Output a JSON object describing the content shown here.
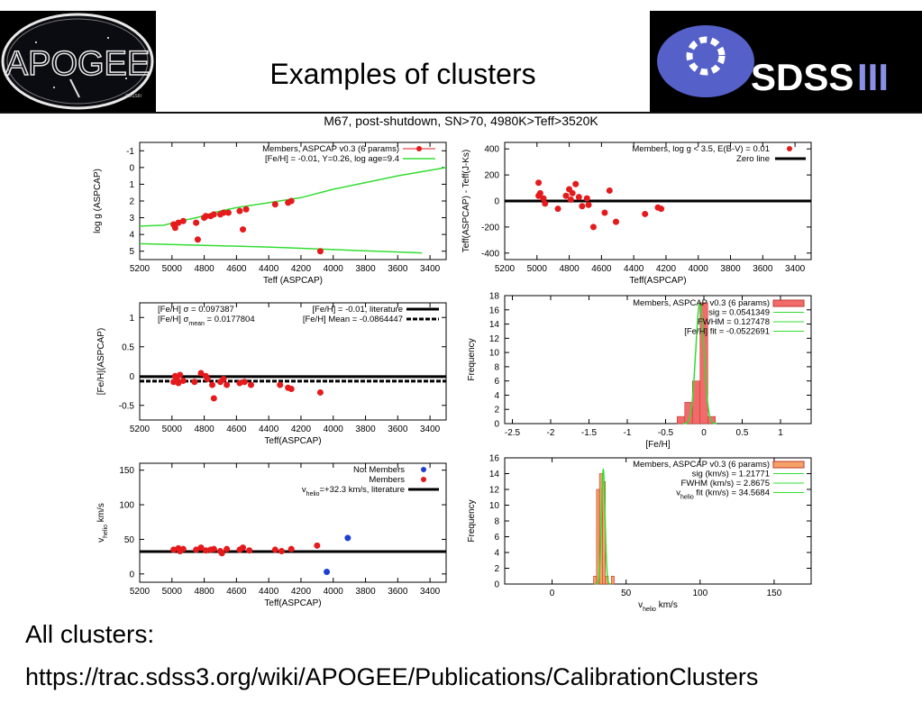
{
  "slide": {
    "title": "Examples of clusters",
    "logo_left_text": "APOGEE",
    "logo_left_small": "SDSSIII",
    "logo_right_text": "SDSS",
    "logo_right_roman": "III",
    "footer_label": "All clusters:",
    "footer_url": "https://trac.sdss3.org/wiki/APOGEE/Publications/CalibrationClusters"
  },
  "figure_title": "M67, post-shutdown, SN>70, 4980K>Teff>3520K",
  "colors": {
    "member_red": "#e41a1c",
    "nonmember_blue": "#1f3fd1",
    "green": "#33dd33",
    "bar_red": "#f26b6b",
    "bar_orange": "#f4a268"
  },
  "chart_data": [
    {
      "id": "logg",
      "type": "scatter",
      "xlabel": "Teff (ASPCAP)",
      "ylabel": "log g (ASPCAP)",
      "xlim": [
        5200,
        3300
      ],
      "ylim": [
        5.5,
        -1.5
      ],
      "xticks": [
        5200,
        5000,
        4800,
        4600,
        4400,
        4200,
        4000,
        3800,
        3600,
        3400
      ],
      "yticks": [
        -1,
        0,
        1,
        2,
        3,
        4,
        5
      ],
      "legend": [
        "Members, ASPCAP v0.3 (6 params)",
        "[Fe/H] = -0.01, Y=0.26, log age=9.4"
      ],
      "points": [
        [
          4990,
          3.4
        ],
        [
          4980,
          3.6
        ],
        [
          4960,
          3.3
        ],
        [
          4930,
          3.2
        ],
        [
          4850,
          3.3
        ],
        [
          4800,
          3.0
        ],
        [
          4790,
          2.9
        ],
        [
          4760,
          2.9
        ],
        [
          4740,
          2.8
        ],
        [
          4700,
          2.8
        ],
        [
          4680,
          2.7
        ],
        [
          4650,
          2.7
        ],
        [
          4580,
          2.6
        ],
        [
          4540,
          2.5
        ],
        [
          4360,
          2.2
        ],
        [
          4280,
          2.1
        ],
        [
          4260,
          2.0
        ],
        [
          4840,
          4.3
        ],
        [
          4560,
          3.7
        ],
        [
          4080,
          5.0
        ]
      ],
      "isochrone_upper": [
        [
          5200,
          3.5
        ],
        [
          5050,
          3.45
        ],
        [
          4950,
          3.2
        ],
        [
          4850,
          3.0
        ],
        [
          4700,
          2.6
        ],
        [
          4600,
          2.4
        ],
        [
          4400,
          2.1
        ],
        [
          4200,
          1.8
        ],
        [
          4000,
          1.3
        ],
        [
          3800,
          0.9
        ],
        [
          3600,
          0.5
        ],
        [
          3300,
          0.0
        ]
      ],
      "isochrone_lower": [
        [
          5200,
          4.55
        ],
        [
          4800,
          4.65
        ],
        [
          4400,
          4.75
        ],
        [
          4000,
          4.9
        ],
        [
          3600,
          5.05
        ],
        [
          3450,
          5.1
        ]
      ]
    },
    {
      "id": "dteff",
      "type": "scatter",
      "xlabel": "Teff(ASPCAP)",
      "ylabel": "Teff(ASPCAP) - Teff(J-Ks)",
      "xlim": [
        5200,
        3300
      ],
      "ylim": [
        -450,
        450
      ],
      "xticks": [
        5200,
        5000,
        4800,
        4600,
        4400,
        4200,
        4000,
        3800,
        3600,
        3400
      ],
      "yticks": [
        400,
        200,
        0,
        -200,
        -400
      ],
      "legend": [
        "Members, log g < 3.5, E(B-V) = 0.01",
        "Zero line"
      ],
      "points": [
        [
          4990,
          140
        ],
        [
          4980,
          60
        ],
        [
          4990,
          40
        ],
        [
          4960,
          20
        ],
        [
          4950,
          -20
        ],
        [
          4870,
          -60
        ],
        [
          4820,
          40
        ],
        [
          4800,
          90
        ],
        [
          4790,
          10
        ],
        [
          4780,
          60
        ],
        [
          4760,
          130
        ],
        [
          4740,
          30
        ],
        [
          4720,
          -40
        ],
        [
          4690,
          20
        ],
        [
          4680,
          -30
        ],
        [
          4650,
          -200
        ],
        [
          4580,
          -90
        ],
        [
          4550,
          80
        ],
        [
          4510,
          -160
        ],
        [
          4330,
          -100
        ],
        [
          4250,
          -50
        ],
        [
          4230,
          -60
        ]
      ]
    },
    {
      "id": "feh",
      "type": "scatter",
      "xlabel": "Teff(ASPCAP)",
      "ylabel": "[Fe/H](ASPCAP)",
      "xlim": [
        5200,
        3300
      ],
      "ylim": [
        -0.75,
        1.25
      ],
      "xticks": [
        5200,
        5000,
        4800,
        4600,
        4400,
        4200,
        4000,
        3800,
        3600,
        3400
      ],
      "yticks": [
        1,
        0.5,
        0,
        -0.5
      ],
      "legend_sigma": "[Fe/H] σ = 0.097387",
      "legend_sigma_mean": "[Fe/H] σ",
      "legend_sigma_mean_sub": "mean",
      "legend_sigma_mean_val": "= 0.0177804",
      "legend_lit": "[Fe/H] = -0.01, literature",
      "legend_mean": "[Fe/H] Mean = -0.0864447",
      "literature": -0.01,
      "mean": -0.0864447,
      "points": [
        [
          4990,
          -0.1
        ],
        [
          4980,
          0.0
        ],
        [
          4970,
          -0.05
        ],
        [
          4960,
          -0.12
        ],
        [
          4950,
          0.02
        ],
        [
          4930,
          -0.08
        ],
        [
          4860,
          -0.1
        ],
        [
          4820,
          0.05
        ],
        [
          4790,
          0.0
        ],
        [
          4780,
          -0.05
        ],
        [
          4750,
          -0.15
        ],
        [
          4740,
          -0.38
        ],
        [
          4700,
          -0.1
        ],
        [
          4680,
          -0.05
        ],
        [
          4660,
          -0.15
        ],
        [
          4580,
          -0.12
        ],
        [
          4550,
          -0.1
        ],
        [
          4510,
          -0.15
        ],
        [
          4330,
          -0.15
        ],
        [
          4280,
          -0.2
        ],
        [
          4260,
          -0.22
        ],
        [
          4080,
          -0.28
        ]
      ]
    },
    {
      "id": "feh_hist",
      "type": "bar",
      "xlabel": "[Fe/H]",
      "ylabel": "Frequency",
      "xlim": [
        -2.6,
        1.4
      ],
      "ylim": [
        0,
        18
      ],
      "xticks": [
        -2.5,
        -2,
        -1.5,
        -1,
        -0.5,
        0,
        0.5,
        1
      ],
      "yticks": [
        0,
        2,
        4,
        6,
        8,
        10,
        12,
        14,
        16,
        18
      ],
      "legend": [
        "Members, ASPCAP v0.3 (6 params)",
        "sig = 0.0541349",
        "FWHM = 0.127478",
        "[Fe/H] fit = -0.0522691"
      ],
      "bins": [
        [
          -0.35,
          -0.25,
          1
        ],
        [
          -0.25,
          -0.15,
          3
        ],
        [
          -0.15,
          -0.05,
          6
        ],
        [
          -0.05,
          0.05,
          17
        ],
        [
          0.05,
          0.15,
          1
        ]
      ],
      "fit_mu": -0.0522691,
      "fit_sig": 0.0541349,
      "fit_peak": 17
    },
    {
      "id": "vhelio",
      "type": "scatter",
      "xlabel": "Teff(ASPCAP)",
      "ylabel": "v",
      "ylabel_sub": "helio",
      "ylabel_rest": " km/s",
      "xlim": [
        5200,
        3300
      ],
      "ylim": [
        -12,
        160
      ],
      "xticks": [
        5200,
        5000,
        4800,
        4600,
        4400,
        4200,
        4000,
        3800,
        3600,
        3400
      ],
      "yticks": [
        150,
        100,
        50,
        0
      ],
      "legend": [
        "Not Members",
        "Members"
      ],
      "legend_lit_v": "v",
      "legend_lit_sub": "helio",
      "legend_lit_rest": "=+32.3 km/s, literature",
      "literature": 32.3,
      "members": [
        [
          4990,
          35
        ],
        [
          4960,
          37
        ],
        [
          4950,
          33
        ],
        [
          4930,
          36
        ],
        [
          4850,
          35
        ],
        [
          4820,
          38
        ],
        [
          4790,
          34
        ],
        [
          4760,
          35
        ],
        [
          4740,
          36
        ],
        [
          4700,
          33
        ],
        [
          4690,
          30
        ],
        [
          4660,
          36
        ],
        [
          4580,
          35
        ],
        [
          4560,
          38
        ],
        [
          4520,
          34
        ],
        [
          4360,
          35
        ],
        [
          4320,
          33
        ],
        [
          4260,
          36
        ],
        [
          4100,
          41
        ]
      ],
      "non_members": [
        [
          4040,
          3
        ],
        [
          3910,
          52
        ]
      ]
    },
    {
      "id": "vhelio_hist",
      "type": "bar",
      "xlabel": "v",
      "xlabel_sub": "helio",
      "xlabel_rest": " km/s",
      "ylabel": "Frequency",
      "xlim": [
        -32,
        175
      ],
      "ylim": [
        0,
        16
      ],
      "xticks": [
        0,
        50,
        100,
        150
      ],
      "yticks": [
        0,
        2,
        4,
        6,
        8,
        10,
        12,
        14,
        16
      ],
      "legend": [
        "Members, ASPCAP v0.3 (6 params)",
        "sig (km/s) = 1.21771",
        "FWHM (km/s) = 2.8675"
      ],
      "legend_fit_v": "v",
      "legend_fit_sub": "helio",
      "legend_fit_rest": " fit (km/s) = 34.5684",
      "bins": [
        [
          28,
          30,
          1
        ],
        [
          30,
          32,
          12
        ],
        [
          32,
          34,
          14
        ],
        [
          34,
          36,
          13
        ],
        [
          36,
          38,
          1
        ],
        [
          40,
          42,
          1
        ]
      ],
      "fit_mu": 34.5684,
      "fit_sig": 1.21771,
      "fit_peak": 14.5
    }
  ]
}
